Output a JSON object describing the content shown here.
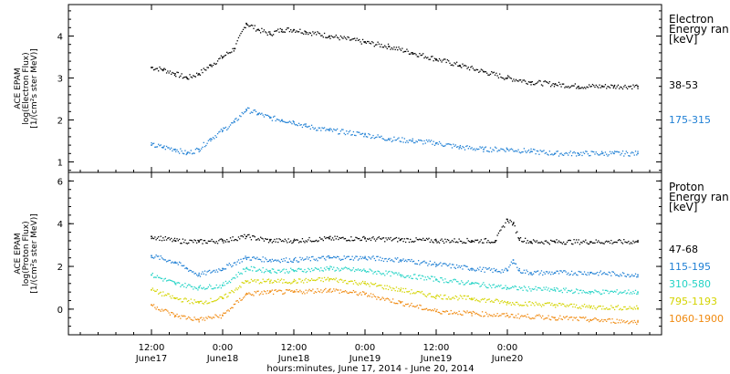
{
  "chart_data": [
    {
      "type": "scatter",
      "panel": "electron",
      "ylabel_lines": [
        "ACE EPAM",
        "log(Electron Flux)",
        "[1/(cm²s ster MeV)]"
      ],
      "ylim": [
        0.75,
        4.75
      ],
      "yticks": [
        1,
        2,
        3,
        4
      ],
      "legend_title": [
        "Electron",
        "Energy ran",
        "[keV]"
      ],
      "series": [
        {
          "name": "38-53",
          "color": "#000000",
          "x": [
            0,
            2,
            4,
            6,
            8,
            10,
            12,
            14,
            16,
            18,
            20,
            22,
            24,
            26,
            30,
            36,
            40,
            44,
            48,
            52,
            56,
            60,
            64,
            68,
            72,
            76,
            78,
            82
          ],
          "y": [
            3.25,
            3.2,
            3.1,
            3.0,
            3.1,
            3.3,
            3.5,
            3.7,
            4.3,
            4.15,
            4.05,
            4.15,
            4.15,
            4.1,
            4.0,
            3.85,
            3.75,
            3.6,
            3.45,
            3.3,
            3.15,
            3.0,
            2.9,
            2.85,
            2.8,
            2.8,
            2.8,
            2.8
          ]
        },
        {
          "name": "175-315",
          "color": "#1e7fd4",
          "x": [
            0,
            2,
            4,
            6,
            8,
            10,
            12,
            14,
            16,
            18,
            20,
            22,
            24,
            26,
            30,
            36,
            40,
            44,
            48,
            52,
            56,
            60,
            64,
            68,
            72,
            76,
            78,
            82
          ],
          "y": [
            1.4,
            1.35,
            1.3,
            1.2,
            1.3,
            1.55,
            1.75,
            1.95,
            2.25,
            2.15,
            2.05,
            2.0,
            1.95,
            1.85,
            1.75,
            1.65,
            1.55,
            1.5,
            1.45,
            1.35,
            1.3,
            1.3,
            1.25,
            1.2,
            1.2,
            1.2,
            1.2,
            1.2
          ]
        }
      ]
    },
    {
      "type": "scatter",
      "panel": "proton",
      "ylabel_lines": [
        "ACE EPAM",
        "log(Proton Flux)",
        "[1/(cm²s ster MeV)]"
      ],
      "ylim": [
        -1.2,
        6.4
      ],
      "yticks": [
        0,
        2,
        4,
        6
      ],
      "legend_title": [
        "Proton",
        "Energy ran",
        "[keV]"
      ],
      "xlabel": "hours:minutes, June 17, 2014 - June 20, 2014",
      "x_tick_labels": [
        {
          "t": "12:00",
          "d": "June17"
        },
        {
          "t": "0:00",
          "d": "June18"
        },
        {
          "t": "12:00",
          "d": "June18"
        },
        {
          "t": "0:00",
          "d": "June19"
        },
        {
          "t": "12:00",
          "d": "June19"
        },
        {
          "t": "0:00",
          "d": "June20"
        }
      ],
      "series": [
        {
          "name": "47-68",
          "color": "#000000",
          "x": [
            0,
            4,
            8,
            12,
            16,
            20,
            24,
            30,
            36,
            42,
            48,
            54,
            58,
            60,
            61,
            62,
            64,
            68,
            74,
            82
          ],
          "y": [
            3.4,
            3.2,
            3.15,
            3.2,
            3.4,
            3.2,
            3.2,
            3.3,
            3.3,
            3.25,
            3.2,
            3.2,
            3.2,
            4.2,
            4.0,
            3.3,
            3.15,
            3.15,
            3.15,
            3.15
          ]
        },
        {
          "name": "115-195",
          "color": "#1e7fd4",
          "x": [
            0,
            4,
            6,
            8,
            12,
            16,
            20,
            24,
            30,
            36,
            42,
            48,
            54,
            58,
            60,
            61,
            62,
            64,
            68,
            74,
            82
          ],
          "y": [
            2.5,
            2.2,
            1.9,
            1.6,
            1.9,
            2.4,
            2.3,
            2.3,
            2.4,
            2.4,
            2.3,
            2.1,
            1.9,
            1.8,
            1.8,
            2.3,
            1.8,
            1.7,
            1.7,
            1.7,
            1.6
          ]
        },
        {
          "name": "310-580",
          "color": "#22d3c5",
          "x": [
            0,
            4,
            8,
            12,
            16,
            20,
            24,
            30,
            36,
            42,
            48,
            54,
            60,
            68,
            74,
            82
          ],
          "y": [
            1.6,
            1.2,
            1.0,
            1.1,
            1.9,
            1.8,
            1.8,
            1.9,
            1.8,
            1.6,
            1.4,
            1.2,
            1.0,
            0.9,
            0.8,
            0.8
          ]
        },
        {
          "name": "795-1193",
          "color": "#d4d400",
          "x": [
            0,
            4,
            8,
            12,
            16,
            20,
            24,
            30,
            36,
            42,
            48,
            54,
            60,
            68,
            74,
            82
          ],
          "y": [
            0.9,
            0.5,
            0.3,
            0.5,
            1.3,
            1.3,
            1.3,
            1.4,
            1.2,
            0.9,
            0.6,
            0.5,
            0.3,
            0.2,
            0.1,
            0.05
          ]
        },
        {
          "name": "1060-1900",
          "color": "#f08a10",
          "x": [
            0,
            4,
            8,
            12,
            16,
            20,
            24,
            30,
            36,
            42,
            48,
            54,
            60,
            68,
            74,
            82
          ],
          "y": [
            0.2,
            -0.3,
            -0.5,
            -0.3,
            0.7,
            0.8,
            0.8,
            0.9,
            0.7,
            0.3,
            -0.1,
            -0.2,
            -0.3,
            -0.4,
            -0.5,
            -0.6
          ]
        }
      ]
    }
  ]
}
